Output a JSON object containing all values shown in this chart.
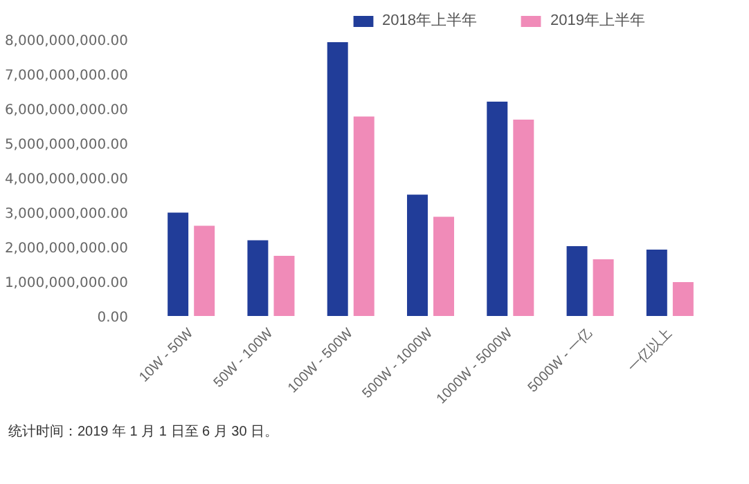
{
  "chart_data": {
    "type": "bar",
    "categories": [
      "10W - 50W",
      "50W - 100W",
      "100W - 500W",
      "500W - 1000W",
      "1000W - 5000W",
      "5000W - 一亿",
      "一亿以上"
    ],
    "series": [
      {
        "name": "2018年上半年",
        "color": "#213d99",
        "values": [
          2990000000,
          2190000000,
          7920000000,
          3510000000,
          6200000000,
          2020000000,
          1920000000
        ]
      },
      {
        "name": "2019年上半年",
        "color": "#f08bb8",
        "values": [
          2610000000,
          1740000000,
          5770000000,
          2870000000,
          5680000000,
          1640000000,
          980000000
        ]
      }
    ],
    "ylim": [
      0,
      8000000000
    ],
    "yticks": [
      {
        "value": 0,
        "label": "0.00"
      },
      {
        "value": 1000000000,
        "label": "1,000,000,000.00"
      },
      {
        "value": 2000000000,
        "label": "2,000,000,000.00"
      },
      {
        "value": 3000000000,
        "label": "3,000,000,000.00"
      },
      {
        "value": 4000000000,
        "label": "4,000,000,000.00"
      },
      {
        "value": 5000000000,
        "label": "5,000,000,000.00"
      },
      {
        "value": 6000000000,
        "label": "6,000,000,000.00"
      },
      {
        "value": 7000000000,
        "label": "7,000,000,000.00"
      },
      {
        "value": 8000000000,
        "label": "8,000,000,000.00"
      }
    ],
    "grid": false,
    "legend": "top",
    "annotations": [
      "统计时间：2019 年 1 月 1 日至 6 月 30 日。"
    ]
  }
}
